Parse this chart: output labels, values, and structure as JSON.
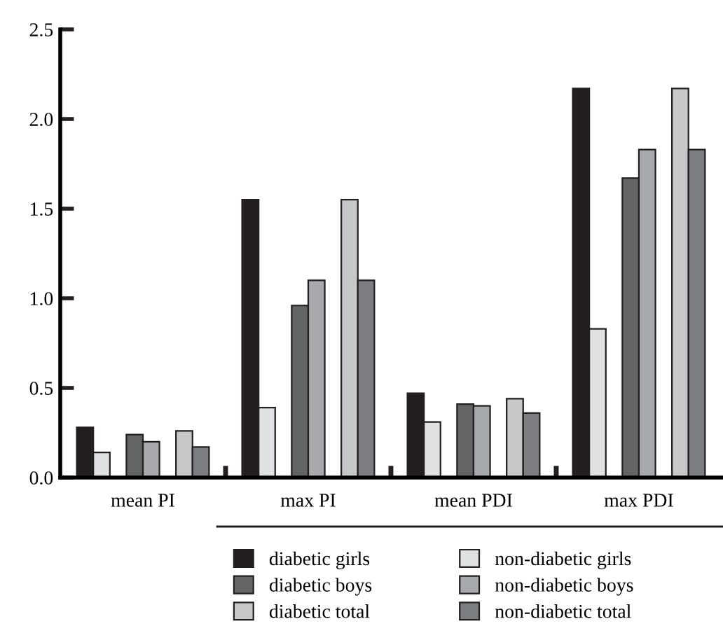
{
  "chart_data": {
    "type": "bar",
    "categories": [
      "mean PI",
      "max PI",
      "mean PDI",
      "max PDI"
    ],
    "series": [
      {
        "name": "diabetic girls",
        "color": "#231f20",
        "values": [
          0.28,
          1.55,
          0.47,
          2.17
        ]
      },
      {
        "name": "non-diabetic girls",
        "color": "#e0e1e2",
        "values": [
          0.14,
          0.39,
          0.31,
          0.83
        ]
      },
      {
        "name": "diabetic boys",
        "color": "#636466",
        "values": [
          0.24,
          0.96,
          0.41,
          1.67
        ]
      },
      {
        "name": "non-diabetic boys",
        "color": "#a7a9ac",
        "values": [
          0.2,
          1.1,
          0.4,
          1.83
        ]
      },
      {
        "name": "diabetic total",
        "color": "#c7c8ca",
        "values": [
          0.26,
          1.55,
          0.44,
          2.17
        ]
      },
      {
        "name": "non-diabetic total",
        "color": "#7d7e81",
        "values": [
          0.17,
          1.1,
          0.36,
          1.83
        ]
      }
    ],
    "ylim": [
      0,
      2.5
    ],
    "yticks": [
      {
        "value": 0,
        "label": "0.0"
      },
      0.5,
      {
        "value": 1,
        "label": "1.0"
      },
      1.5,
      {
        "value": 2,
        "label": "2.0"
      },
      2.5
    ],
    "grid": false,
    "legend": "bottom"
  }
}
